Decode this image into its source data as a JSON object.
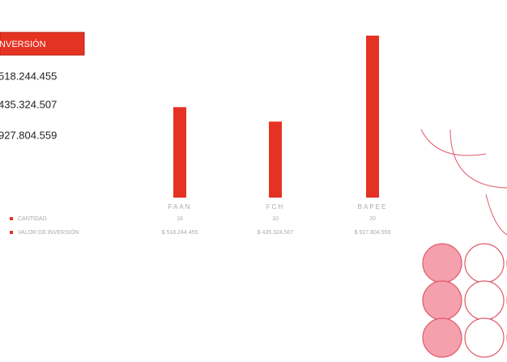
{
  "table": {
    "header": "INVERSIÓN",
    "rows": [
      "518.244.455",
      "435.324.507",
      "927.804.559"
    ]
  },
  "chart_data": {
    "type": "bar",
    "categories": [
      "FAAN",
      "FCH",
      "BAPEE"
    ],
    "series": [
      {
        "name": "CANTIDAD",
        "color": "#e53323",
        "values": [
          16,
          10,
          20
        ]
      },
      {
        "name": "VALOR DE INVERSIÓN",
        "color": "#e53323",
        "values": [
          518244455,
          435324507,
          927804559
        ],
        "value_labels": [
          "$ 518.244.455",
          "$ 435.324.507",
          "$ 927.804.559"
        ]
      }
    ]
  }
}
